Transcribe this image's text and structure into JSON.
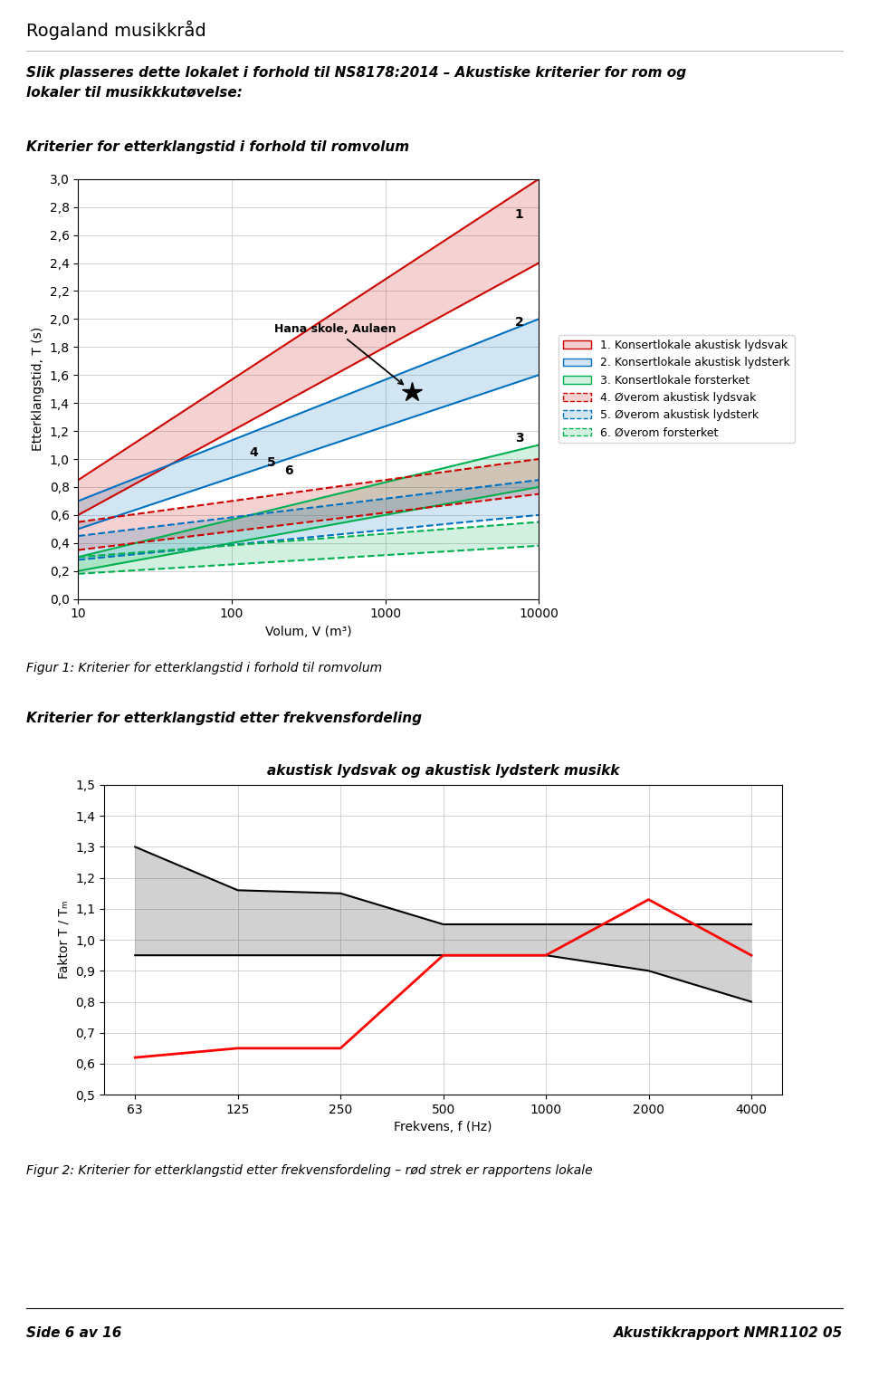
{
  "page": {
    "header": "Rogaland musikkråd",
    "title": "Slik plasseres dette lokalet i forhold til NS8178:2014 – Akustiske kriterier for rom og\nlokaler til musikkkutøvelse:",
    "footer": [
      "Side 6 av 16",
      "Akustikkrapport NMR1102 05"
    ]
  },
  "chart_data": [
    {
      "type": "band",
      "title": "Kriterier for etterklangstid i forhold til romvolum",
      "caption": "Figur 1: Kriterier for etterklangstid i forhold til romvolum",
      "xlabel": "Volum, V (m³)",
      "ylabel": "Etterklangstid, T (s)",
      "log": "x",
      "grid": true,
      "legend": "center left",
      "x": [
        10,
        10000
      ],
      "xlim": [
        10,
        10000
      ],
      "xticks": [
        10,
        100,
        1000,
        10000
      ],
      "ylim": [
        0.0,
        3.0
      ],
      "yticks": [
        {
          "value": 0.0,
          "label": "0,0"
        },
        {
          "value": 0.2,
          "label": "0,2"
        },
        {
          "value": 0.4,
          "label": "0,4"
        },
        {
          "value": 0.6,
          "label": "0,6"
        },
        {
          "value": 0.8,
          "label": "0,8"
        },
        {
          "value": 1.0,
          "label": "1,0"
        },
        {
          "value": 1.2,
          "label": "1,2"
        },
        {
          "value": 1.4,
          "label": "1,4"
        },
        {
          "value": 1.6,
          "label": "1,6"
        },
        {
          "value": 1.8,
          "label": "1,8"
        },
        {
          "value": 2.0,
          "label": "2,0"
        },
        {
          "value": 2.2,
          "label": "2,2"
        },
        {
          "value": 2.4,
          "label": "2,4"
        },
        {
          "value": 2.6,
          "label": "2,6"
        },
        {
          "value": 2.8,
          "label": "2,8"
        },
        {
          "value": 3.0,
          "label": "3,0"
        }
      ],
      "series": [
        {
          "name": "1. Konsertlokale akustisk lydsvak",
          "color": "#cc0000",
          "line_style": "solid",
          "lower": [
            0.6,
            2.4
          ],
          "upper": [
            0.85,
            3.0
          ]
        },
        {
          "name": "2. Konsertlokale akustisk lydsterk",
          "color": "#0070c0",
          "line_style": "solid",
          "lower": [
            0.5,
            1.6
          ],
          "upper": [
            0.7,
            2.0
          ]
        },
        {
          "name": "3. Konsertlokale forsterket",
          "color": "#00b050",
          "line_style": "solid",
          "lower": [
            0.2,
            0.8
          ],
          "upper": [
            0.3,
            1.1
          ]
        },
        {
          "name": "4. Øverom akustisk lydsvak",
          "color": "#cc0000",
          "line_style": "dashed",
          "lower": [
            0.35,
            0.75
          ],
          "upper": [
            0.55,
            1.0
          ]
        },
        {
          "name": "5. Øverom akustisk lydsterk",
          "color": "#0070c0",
          "line_style": "dashed",
          "lower": [
            0.28,
            0.6
          ],
          "upper": [
            0.45,
            0.85
          ]
        },
        {
          "name": "6. Øverom forsterket",
          "color": "#00b050",
          "line_style": "dashed",
          "lower": [
            0.18,
            0.38
          ],
          "upper": [
            0.3,
            0.55
          ]
        }
      ],
      "annotations": [
        {
          "text": "Hana skole, Aulaen",
          "x": 1500,
          "y": 1.48,
          "marker": "*"
        },
        {
          "text": "1",
          "x": 7000,
          "y": 2.72
        },
        {
          "text": "2",
          "x": 7000,
          "y": 1.95
        },
        {
          "text": "3",
          "x": 7000,
          "y": 1.12
        },
        {
          "text": "4",
          "x": 130,
          "y": 1.02
        },
        {
          "text": "5",
          "x": 170,
          "y": 0.95
        },
        {
          "text": "6",
          "x": 220,
          "y": 0.89
        }
      ]
    },
    {
      "type": "band",
      "title": "Kriterier for etterklangstid etter frekvensfordeling",
      "subtitle": "akustisk lydsvak og akustisk lydsterk musikk",
      "caption": "Figur 2: Kriterier for etterklangstid etter frekvensfordeling – rød strek er rapportens lokale",
      "xlabel": "Frekvens, f (Hz)",
      "ylabel": "Faktor T / Tₘ",
      "grid": true,
      "categories": [
        "63",
        "125",
        "250",
        "500",
        "1000",
        "2000",
        "4000"
      ],
      "ylim": [
        0.5,
        1.5
      ],
      "yticks": [
        {
          "value": 0.5,
          "label": "0,5"
        },
        {
          "value": 0.6,
          "label": "0,6"
        },
        {
          "value": 0.7,
          "label": "0,7"
        },
        {
          "value": 0.8,
          "label": "0,8"
        },
        {
          "value": 0.9,
          "label": "0,9"
        },
        {
          "value": 1.0,
          "label": "1,0"
        },
        {
          "value": 1.1,
          "label": "1,1"
        },
        {
          "value": 1.2,
          "label": "1,2"
        },
        {
          "value": 1.3,
          "label": "1,3"
        },
        {
          "value": 1.4,
          "label": "1,4"
        },
        {
          "value": 1.5,
          "label": "1,5"
        }
      ],
      "series": [
        {
          "type": "band",
          "color": "black",
          "line_style": "solid",
          "lower": [
            0.95,
            0.95,
            0.95,
            0.95,
            0.95,
            0.9,
            0.8
          ],
          "upper": [
            1.3,
            1.16,
            1.15,
            1.05,
            1.05,
            1.05,
            1.05
          ]
        },
        {
          "type": "line",
          "color": "red",
          "line_style": "solid",
          "values": [
            0.62,
            0.65,
            0.65,
            0.95,
            0.95,
            1.13,
            0.95
          ]
        }
      ]
    }
  ]
}
